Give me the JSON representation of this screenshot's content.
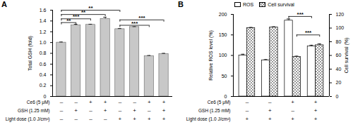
{
  "chart_data": [
    {
      "type": "bar",
      "title": "A",
      "y_label": "Total GSH (fold)",
      "values": [
        1.0,
        1.32,
        1.33,
        1.44,
        1.25,
        1.29,
        0.75,
        0.79
      ],
      "errors": [
        0.01,
        0.02,
        0.01,
        0.03,
        0.01,
        0.005,
        0.01,
        0.01
      ],
      "color": "#c8c8c8",
      "ylim": [
        0,
        1.6
      ],
      "yticks": [
        0,
        0.2,
        0.4,
        0.6,
        0.8,
        {
          "value": 1,
          "label": "1.0"
        },
        1.2,
        1.4,
        1.6
      ],
      "conditions": [
        {
          "label": "Ce6 (5 μM)",
          "values": [
            "–",
            "–",
            "+",
            "+",
            "–",
            "–",
            "+",
            "+"
          ]
        },
        {
          "label": "GSH (1.25 mM)",
          "values": [
            "–",
            "+",
            "–",
            "+",
            "–",
            "+",
            "–",
            "+"
          ]
        },
        {
          "label": "Light dose (1.0 J/cm²)",
          "values": [
            "–",
            "–",
            "–",
            "–",
            "+",
            "+",
            "+",
            "+"
          ]
        }
      ],
      "brackets": [
        {
          "from": 0,
          "to": 4,
          "y": 1.6,
          "label": "**"
        },
        {
          "from": 0,
          "to": 3,
          "y": 1.52,
          "label": "**"
        },
        {
          "from": 0,
          "to": 2,
          "y": 1.44,
          "label": "***"
        },
        {
          "from": 0,
          "to": 1,
          "y": 1.37,
          "label": "**"
        },
        {
          "from": 4,
          "to": 7,
          "y": 1.42,
          "label": "***"
        },
        {
          "from": 4,
          "to": 6,
          "y": 1.32,
          "label": "***"
        }
      ]
    },
    {
      "type": "bar",
      "title": "B",
      "y_label": "Relative ROS level (%)",
      "y2_label": "Cell survival (%)",
      "legend": "top-left",
      "series": [
        {
          "name": "ROS",
          "color": "#ffffff",
          "values": [
            100,
            88,
            185,
            122
          ],
          "errors": [
            3,
            2,
            4,
            3
          ]
        },
        {
          "name": "Cell survival",
          "color": "#808080",
          "axis": "y2",
          "values": [
            100,
            101,
            58,
            75
          ],
          "errors": [
            1,
            1,
            1,
            2
          ]
        }
      ],
      "ylim": [
        0,
        200
      ],
      "yticks": [
        0,
        50,
        100,
        150,
        200
      ],
      "y2lim": [
        0,
        120
      ],
      "y2ticks": [
        0,
        20,
        40,
        60,
        80,
        100,
        120
      ],
      "conditions": [
        {
          "label": "Ce6 (5 μM)",
          "values": [
            "–",
            "–",
            "+",
            "+"
          ]
        },
        {
          "label": "GSH (1.25 mM)",
          "values": [
            "–",
            "+",
            "–",
            "+"
          ]
        },
        {
          "label": "Light dose (1.0 J/cm²)",
          "values": [
            "+",
            "+",
            "+",
            "+"
          ]
        }
      ],
      "brackets": [
        {
          "from": 2,
          "to": 3,
          "y": 195,
          "label": "***",
          "series": "ROS"
        },
        {
          "from": 2,
          "to": 3,
          "y": 90,
          "label": "***",
          "series": "Cell survival"
        }
      ]
    }
  ]
}
